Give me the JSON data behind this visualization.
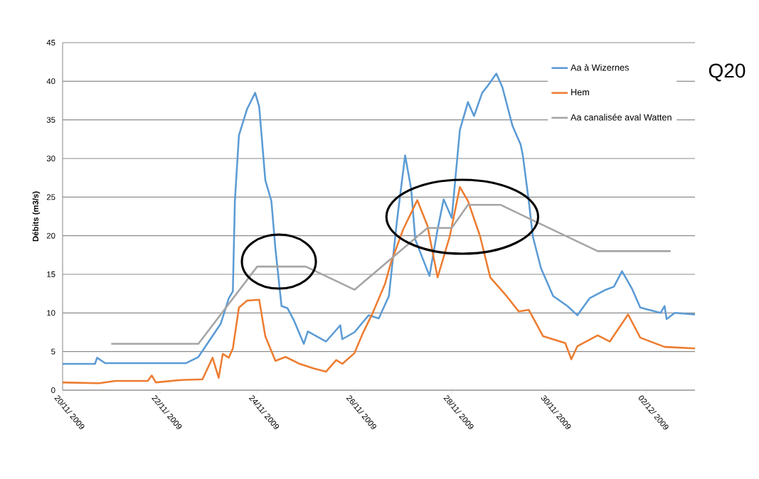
{
  "chart_data": {
    "type": "line",
    "ylabel": "Débits (m3/s)",
    "xlim": [
      "2009-11-20",
      "2009-12-03"
    ],
    "xticks": [
      {
        "value": "2009-11-20",
        "label": "20/11/ 2009"
      },
      {
        "value": "2009-11-22",
        "label": "22/11/ 2009"
      },
      {
        "value": "2009-11-24",
        "label": "24/11/ 2009"
      },
      {
        "value": "2009-11-26",
        "label": "26/11/ 2009"
      },
      {
        "value": "2009-11-28",
        "label": "28/11/ 2009"
      },
      {
        "value": "2009-11-30",
        "label": "30/11/ 2009"
      },
      {
        "value": "2009-12-02",
        "label": "02/12/ 2009"
      }
    ],
    "ylim": [
      0,
      45
    ],
    "yticks": [
      0,
      5,
      10,
      15,
      20,
      25,
      30,
      35,
      40,
      45
    ],
    "grid": "y",
    "legend": "top right",
    "marker": "none",
    "line_style": "solid",
    "annotations": [
      "Q20"
    ],
    "series": [
      {
        "name": "Aa à Wizernes",
        "color": "#5b9bd5",
        "x": [
          "2009-11-20T00:00",
          "2009-11-20T16:00",
          "2009-11-20T17:00",
          "2009-11-20T21:00",
          "2009-11-22T13:00",
          "2009-11-22T19:00",
          "2009-11-23T06:00",
          "2009-11-23T10:00",
          "2009-11-23T12:00",
          "2009-11-23T13:00",
          "2009-11-23T15:00",
          "2009-11-23T19:00",
          "2009-11-23T23:00",
          "2009-11-24T01:00",
          "2009-11-24T04:00",
          "2009-11-24T07:00",
          "2009-11-24T09:00",
          "2009-11-24T12:00",
          "2009-11-24T15:00",
          "2009-11-24T18:00",
          "2009-11-24T23:00",
          "2009-11-25T01:00",
          "2009-11-25T10:00",
          "2009-11-25T17:00",
          "2009-11-25T18:00",
          "2009-11-26T00:00",
          "2009-11-26T07:00",
          "2009-11-26T12:00",
          "2009-11-26T17:00",
          "2009-11-26T21:00",
          "2009-11-27T01:00",
          "2009-11-27T04:00",
          "2009-11-27T06:00",
          "2009-11-27T13:00",
          "2009-11-27T17:00",
          "2009-11-27T20:00",
          "2009-11-28T00:00",
          "2009-11-28T04:00",
          "2009-11-28T08:00",
          "2009-11-28T11:00",
          "2009-11-28T15:00",
          "2009-11-28T18:00",
          "2009-11-28T22:00",
          "2009-11-29T01:00",
          "2009-11-29T06:00",
          "2009-11-29T10:00",
          "2009-11-29T11:00",
          "2009-11-29T14:00",
          "2009-11-29T16:00",
          "2009-11-29T20:00",
          "2009-11-30T02:00",
          "2009-11-30T09:00",
          "2009-11-30T14:00",
          "2009-11-30T20:00",
          "2009-12-01T04:00",
          "2009-12-01T08:00",
          "2009-12-01T12:00",
          "2009-12-01T17:00",
          "2009-12-01T21:00",
          "2009-12-02T07:00",
          "2009-12-02T09:00",
          "2009-12-02T10:00",
          "2009-12-02T14:00",
          "2009-12-03T00:00"
        ],
        "values": [
          3.4,
          3.4,
          4.2,
          3.5,
          3.5,
          4.3,
          8.6,
          11.9,
          12.8,
          24.5,
          33.0,
          36.4,
          38.5,
          36.7,
          27.2,
          24.5,
          18.3,
          10.9,
          10.6,
          9.1,
          6.0,
          7.6,
          6.3,
          8.4,
          6.6,
          7.5,
          9.7,
          9.3,
          12.2,
          22.0,
          30.4,
          26.0,
          19.5,
          14.8,
          20.8,
          24.7,
          22.3,
          33.7,
          37.3,
          35.5,
          38.5,
          39.5,
          41.0,
          39.2,
          34.2,
          31.8,
          30.5,
          24.5,
          19.9,
          15.8,
          12.2,
          10.9,
          9.7,
          11.9,
          13.0,
          13.4,
          15.4,
          13.1,
          10.7,
          10.0,
          10.9,
          9.2,
          10.0,
          9.8
        ]
      },
      {
        "name": "Hem",
        "color": "#ed7d31",
        "x": [
          "2009-11-20T00:00",
          "2009-11-20T18:00",
          "2009-11-21T02:00",
          "2009-11-21T18:00",
          "2009-11-21T20:00",
          "2009-11-21T22:00",
          "2009-11-22T10:00",
          "2009-11-22T21:00",
          "2009-11-23T02:00",
          "2009-11-23T05:00",
          "2009-11-23T07:00",
          "2009-11-23T10:00",
          "2009-11-23T12:00",
          "2009-11-23T15:00",
          "2009-11-23T19:00",
          "2009-11-24T01:00",
          "2009-11-24T04:00",
          "2009-11-24T09:00",
          "2009-11-24T14:00",
          "2009-11-24T21:00",
          "2009-11-25T04:00",
          "2009-11-25T10:00",
          "2009-11-25T15:00",
          "2009-11-25T18:00",
          "2009-11-26T00:00",
          "2009-11-26T04:00",
          "2009-11-26T09:00",
          "2009-11-26T15:00",
          "2009-11-26T18:00",
          "2009-11-27T00:00",
          "2009-11-27T07:00",
          "2009-11-27T12:00",
          "2009-11-27T17:00",
          "2009-11-27T23:00",
          "2009-11-28T04:00",
          "2009-11-28T08:00",
          "2009-11-28T14:00",
          "2009-11-28T19:00",
          "2009-11-29T03:00",
          "2009-11-29T09:00",
          "2009-11-29T14:00",
          "2009-11-29T21:00",
          "2009-11-30T08:00",
          "2009-11-30T11:00",
          "2009-11-30T14:00",
          "2009-12-01T00:00",
          "2009-12-01T06:00",
          "2009-12-01T15:00",
          "2009-12-01T21:00",
          "2009-12-02T09:00",
          "2009-12-03T00:00"
        ],
        "values": [
          1.0,
          0.9,
          1.2,
          1.2,
          1.9,
          1.0,
          1.3,
          1.4,
          4.2,
          1.6,
          4.7,
          4.2,
          5.4,
          10.7,
          11.6,
          11.7,
          7.0,
          3.8,
          4.3,
          3.4,
          2.8,
          2.4,
          3.9,
          3.4,
          4.8,
          7.3,
          10.0,
          13.7,
          16.5,
          20.8,
          24.6,
          21.3,
          14.6,
          19.9,
          26.3,
          24.5,
          19.9,
          14.6,
          12.2,
          10.2,
          10.4,
          7.0,
          6.1,
          4.0,
          5.7,
          7.1,
          6.3,
          9.8,
          6.8,
          5.6,
          5.4
        ]
      },
      {
        "name": "Aa canalisée aval Watten",
        "color": "#a5a5a5",
        "x": [
          "2009-11-21T00:00",
          "2009-11-22T19:00",
          "2009-11-24T00:00",
          "2009-11-25T00:00",
          "2009-11-26T00:00",
          "2009-11-27T12:00",
          "2009-11-28T00:00",
          "2009-11-28T08:00",
          "2009-11-29T00:00",
          "2009-12-01T00:00",
          "2009-12-02T12:00"
        ],
        "values": [
          6,
          6,
          16,
          16,
          13,
          21,
          21,
          24,
          24,
          18,
          18
        ]
      }
    ]
  }
}
